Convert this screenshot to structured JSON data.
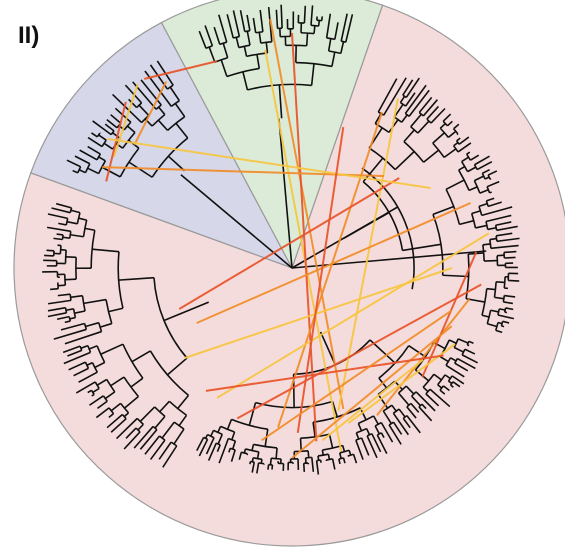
{
  "panel_label": "II)",
  "colors": {
    "background": "#ffffff",
    "sector_blue": "#d6d7e8",
    "sector_pink": "#f5dcdc",
    "sector_green": "#dcebd8",
    "sector_border": "#9a9a9a",
    "branch": "#111111",
    "link_hot": "#e8542a",
    "link_mid": "#f28c28",
    "link_warm": "#f7c640"
  },
  "sectors": [
    {
      "name": "pink-sector",
      "color_key": "sector_pink"
    },
    {
      "name": "green-sector",
      "color_key": "sector_green"
    },
    {
      "name": "blue-sector",
      "color_key": "sector_blue"
    }
  ]
}
